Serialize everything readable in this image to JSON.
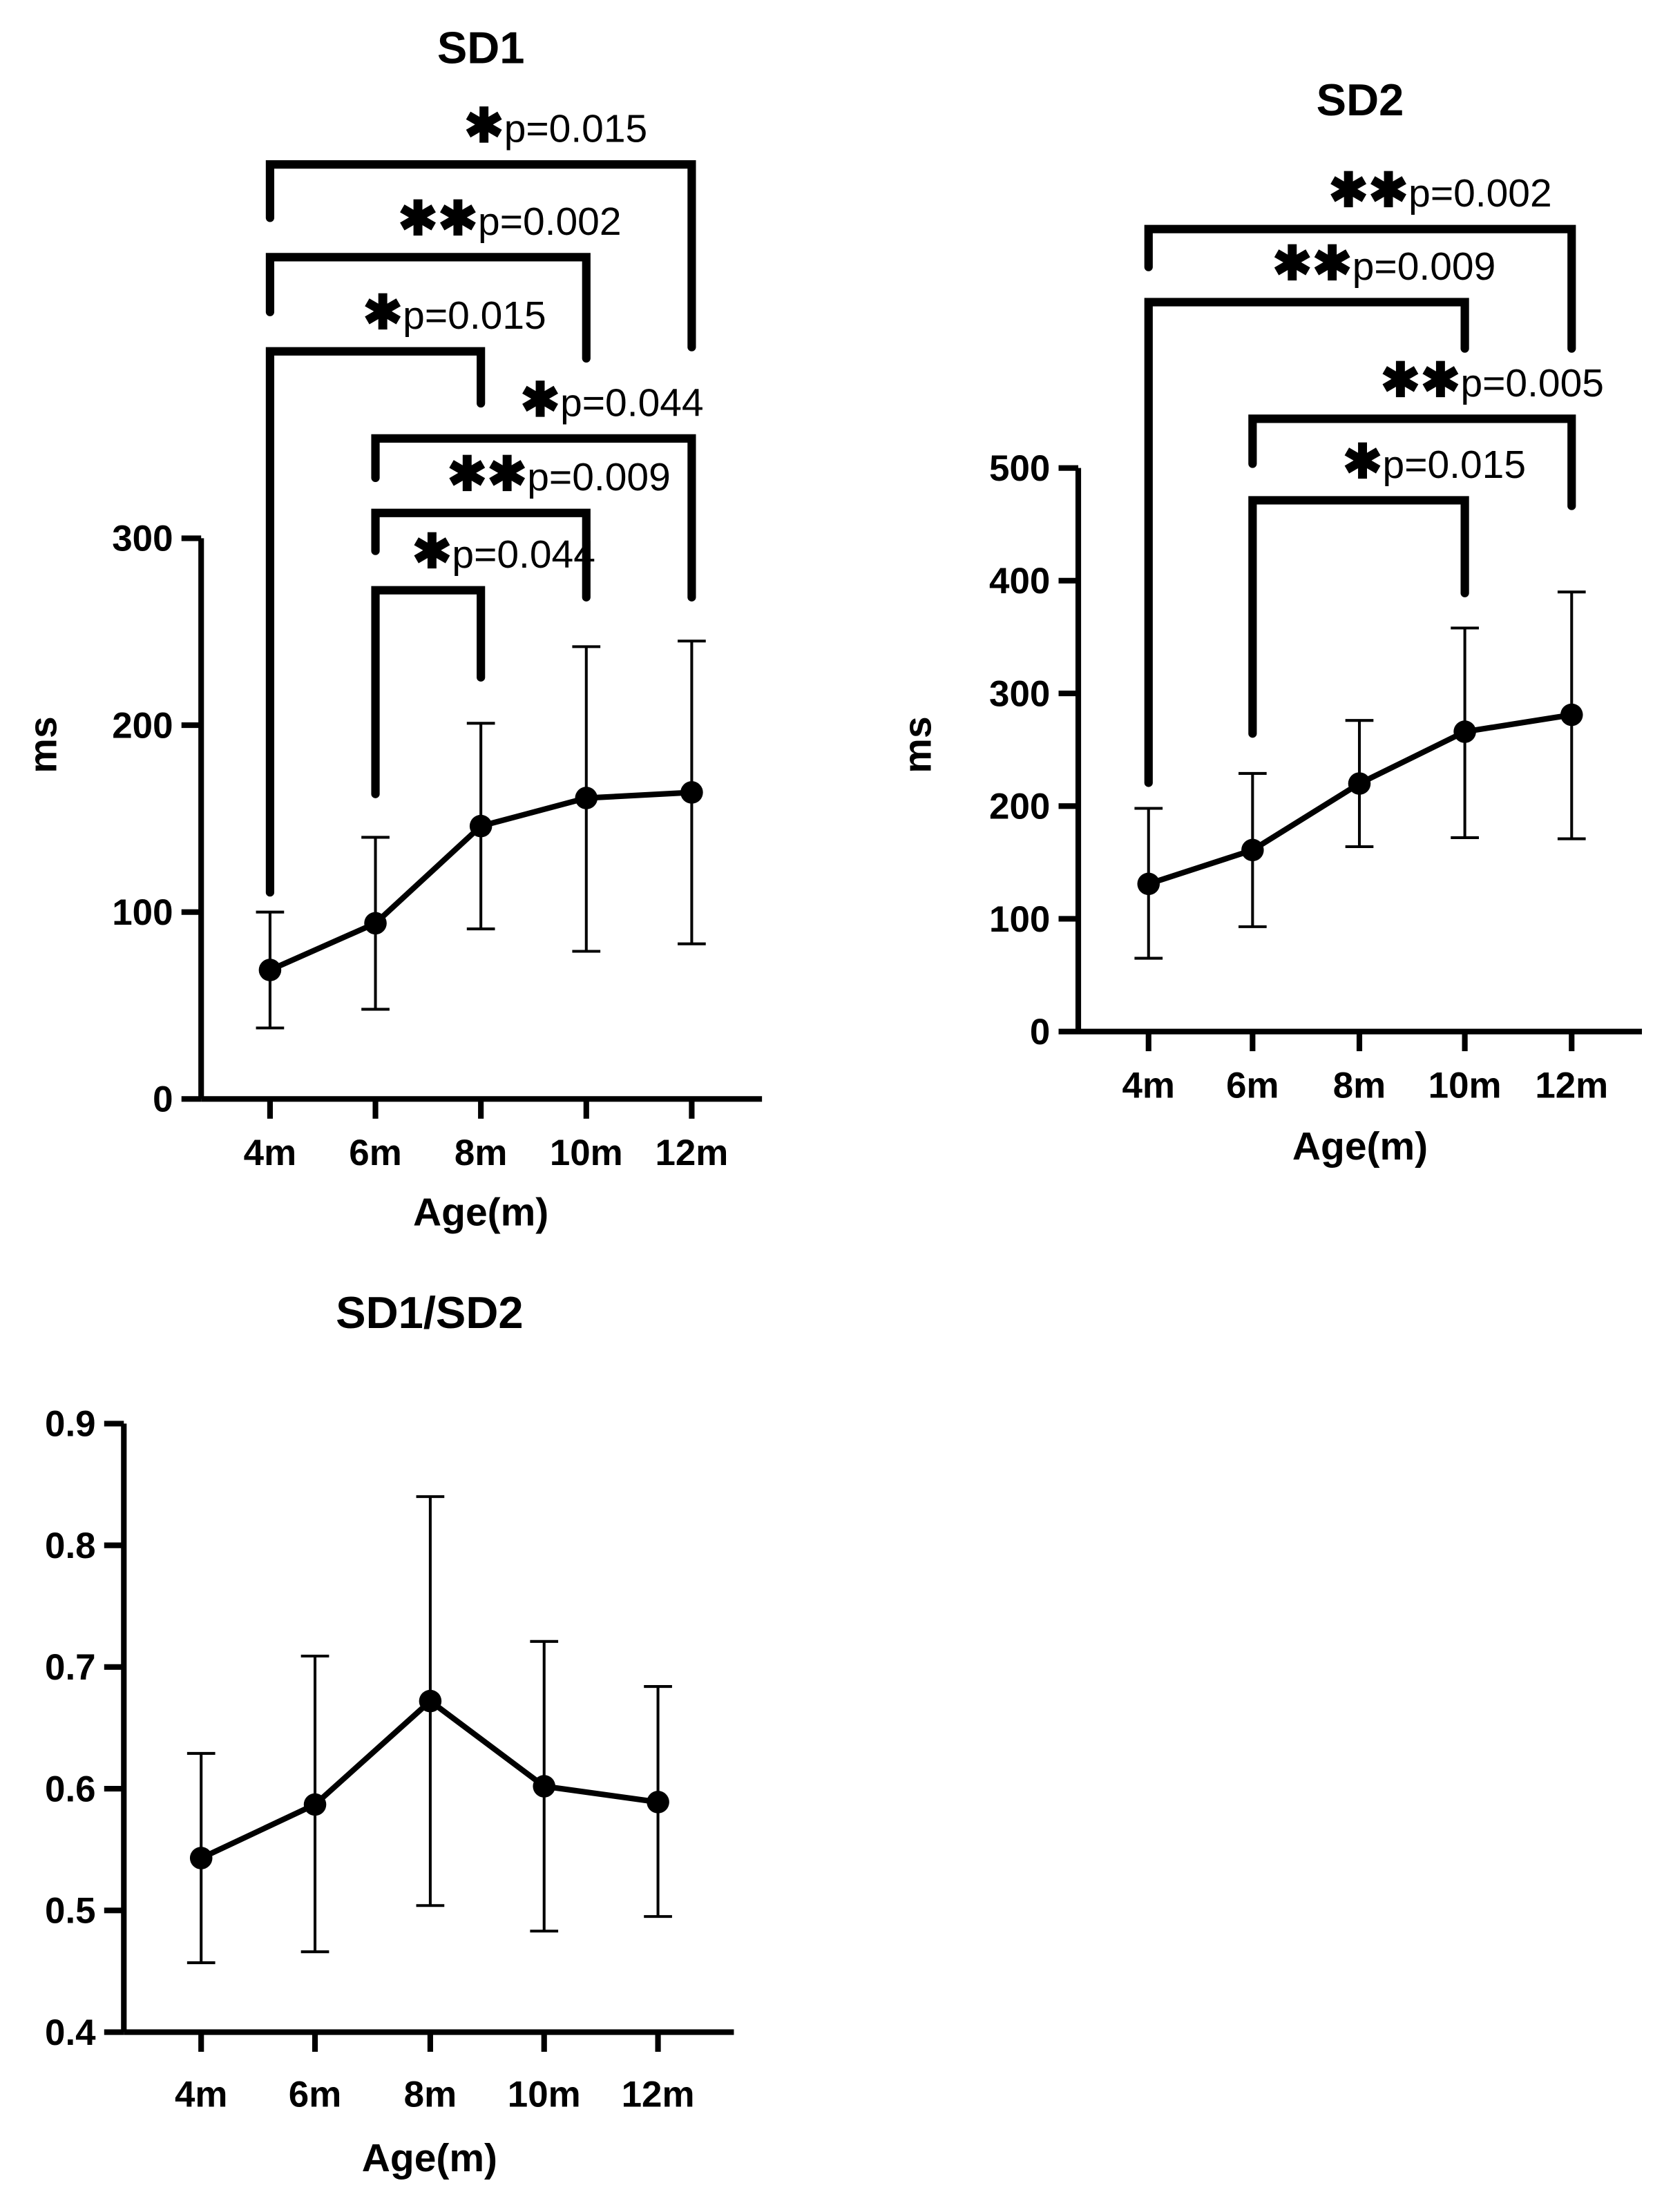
{
  "chart_data": [
    {
      "type": "line",
      "title": "SD1",
      "xlabel": "Age(m)",
      "ylabel": "ms",
      "categories": [
        "4m",
        "6m",
        "8m",
        "10m",
        "12m"
      ],
      "values": [
        69,
        94,
        146,
        161,
        164
      ],
      "error_low": [
        38,
        48,
        91,
        79,
        83
      ],
      "error_high": [
        100,
        140,
        201,
        242,
        245
      ],
      "ylim": [
        0,
        300
      ],
      "yticks": [
        "0",
        "100",
        "200",
        "300"
      ],
      "grid": false,
      "annotations": [
        {
          "from": "4m",
          "to": "12m",
          "stars": "✱",
          "label": "p=0.015"
        },
        {
          "from": "4m",
          "to": "10m",
          "stars": "✱✱",
          "label": "p=0.002"
        },
        {
          "from": "4m",
          "to": "8m",
          "stars": "✱",
          "label": "p=0.015"
        },
        {
          "from": "6m",
          "to": "12m",
          "stars": "✱",
          "label": "p=0.044"
        },
        {
          "from": "6m",
          "to": "10m",
          "stars": "✱✱",
          "label": "p=0.009"
        },
        {
          "from": "6m",
          "to": "8m",
          "stars": "✱",
          "label": "p=0.044"
        }
      ]
    },
    {
      "type": "line",
      "title": "SD2",
      "xlabel": "Age(m)",
      "ylabel": "ms",
      "categories": [
        "4m",
        "6m",
        "8m",
        "10m",
        "12m"
      ],
      "values": [
        131,
        161,
        220,
        266,
        281
      ],
      "error_low": [
        65,
        93,
        164,
        172,
        171
      ],
      "error_high": [
        198,
        229,
        276,
        358,
        390
      ],
      "ylim": [
        0,
        500
      ],
      "yticks": [
        "0",
        "100",
        "200",
        "300",
        "400",
        "500"
      ],
      "grid": false,
      "annotations": [
        {
          "from": "4m",
          "to": "12m",
          "stars": "✱✱",
          "label": "p=0.002"
        },
        {
          "from": "4m",
          "to": "10m",
          "stars": "✱✱",
          "label": "p=0.009"
        },
        {
          "from": "6m",
          "to": "12m",
          "stars": "✱✱",
          "label": "p=0.005"
        },
        {
          "from": "6m",
          "to": "10m",
          "stars": "✱",
          "label": "p=0.015"
        }
      ]
    },
    {
      "type": "line",
      "title": "SD1/SD2",
      "xlabel": "Age(m)",
      "ylabel": "",
      "categories": [
        "4m",
        "6m",
        "8m",
        "10m",
        "12m"
      ],
      "values": [
        0.543,
        0.587,
        0.672,
        0.602,
        0.589
      ],
      "error_low": [
        0.457,
        0.466,
        0.504,
        0.483,
        0.495
      ],
      "error_high": [
        0.629,
        0.709,
        0.84,
        0.721,
        0.684
      ],
      "ylim": [
        0.4,
        0.9
      ],
      "yticks": [
        "0.4",
        "0.5",
        "0.6",
        "0.7",
        "0.8",
        "0.9"
      ],
      "grid": false,
      "annotations": []
    }
  ]
}
